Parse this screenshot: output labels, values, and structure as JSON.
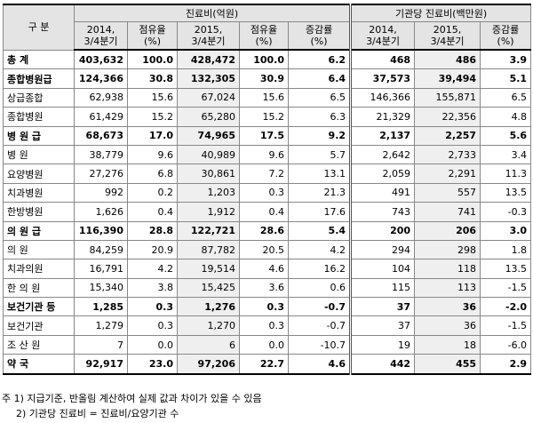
{
  "table": {
    "header": {
      "label": "구 분",
      "groups": [
        "진료비(억원)",
        "기관당 진료비(백만원)"
      ],
      "columns": [
        [
          "2014,",
          "3/4분기"
        ],
        [
          "점유율",
          "(%)"
        ],
        [
          "2015,",
          "3/4분기"
        ],
        [
          "점유율",
          "(%)"
        ],
        [
          "증감률",
          "(%)"
        ],
        [
          "2014,",
          "3/4분기"
        ],
        [
          "2015,",
          "3/4분기"
        ],
        [
          "증감률",
          "(%)"
        ]
      ]
    },
    "rows": [
      [
        "총 계",
        "403,632",
        "100.0",
        "428,472",
        "100.0",
        "6.2",
        "468",
        "486",
        "3.9"
      ],
      [
        "종합병원급",
        "124,366",
        "30.8",
        "132,305",
        "30.9",
        "6.4",
        "37,573",
        "39,494",
        "5.1"
      ],
      [
        "상급종합",
        "62,938",
        "15.6",
        "67,024",
        "15.6",
        "6.5",
        "146,366",
        "155,871",
        "6.5"
      ],
      [
        "종합병원",
        "61,429",
        "15.2",
        "65,280",
        "15.2",
        "6.3",
        "21,329",
        "22,356",
        "4.8"
      ],
      [
        "병 원 급",
        "68,673",
        "17.0",
        "74,965",
        "17.5",
        "9.2",
        "2,137",
        "2,257",
        "5.6"
      ],
      [
        "병 원",
        "38,779",
        "9.6",
        "40,989",
        "9.6",
        "5.7",
        "2,642",
        "2,733",
        "3.4"
      ],
      [
        "요양병원",
        "27,276",
        "6.8",
        "30,861",
        "7.2",
        "13.1",
        "2,059",
        "2,291",
        "11.3"
      ],
      [
        "치과병원",
        "992",
        "0.2",
        "1,203",
        "0.3",
        "21.3",
        "491",
        "557",
        "13.5"
      ],
      [
        "한방병원",
        "1,626",
        "0.4",
        "1,912",
        "0.4",
        "17.6",
        "743",
        "741",
        "-0.3"
      ],
      [
        "의 원 급",
        "116,390",
        "28.8",
        "122,721",
        "28.6",
        "5.4",
        "200",
        "206",
        "3.0"
      ],
      [
        "의 원",
        "84,259",
        "20.9",
        "87,782",
        "20.5",
        "4.2",
        "294",
        "298",
        "1.8"
      ],
      [
        "치과의원",
        "16,791",
        "4.2",
        "19,514",
        "4.6",
        "16.2",
        "104",
        "118",
        "13.5"
      ],
      [
        "한 의 원",
        "15,340",
        "3.8",
        "15,425",
        "3.6",
        "0.6",
        "115",
        "113",
        "-1.5"
      ],
      [
        "보건기관 등",
        "1,285",
        "0.3",
        "1,276",
        "0.3",
        "-0.7",
        "37",
        "36",
        "-2.0"
      ],
      [
        "보건기관",
        "1,279",
        "0.3",
        "1,270",
        "0.3",
        "-0.7",
        "37",
        "36",
        "-1.5"
      ],
      [
        "조 산 원",
        "7",
        "0.0",
        "6",
        "0.0",
        "-10.7",
        "19",
        "18",
        "-6.0"
      ],
      [
        "약 국",
        "92,917",
        "23.0",
        "97,206",
        "22.7",
        "4.6",
        "442",
        "455",
        "2.9"
      ]
    ]
  },
  "notes": [
    "주 1) 지급기준, 반올림 계산하여 실제 값과 차이가 있을 수 있음",
    "2) 기관당 진료비 = 진료비/요양기관 수"
  ]
}
